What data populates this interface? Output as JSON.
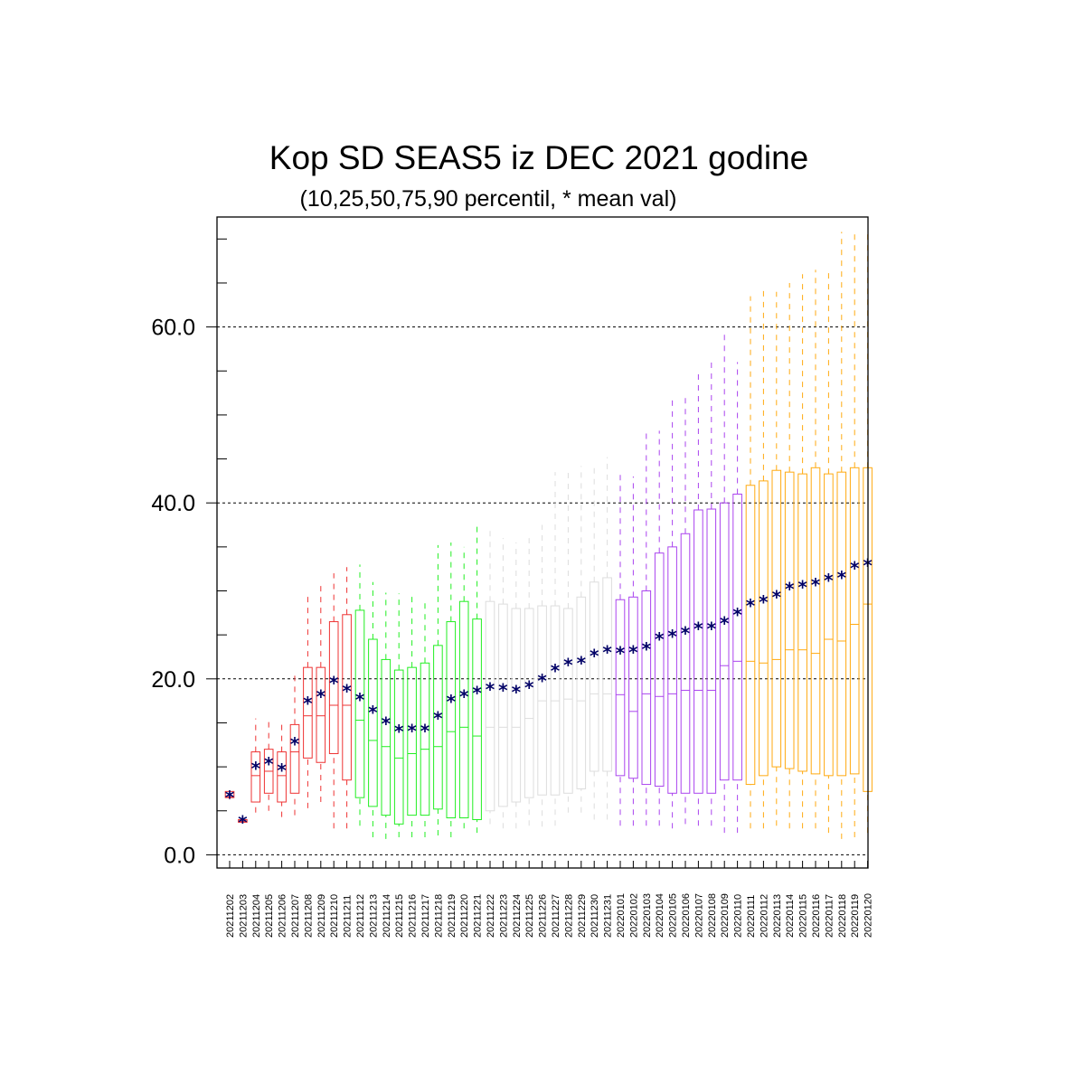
{
  "chart_data": {
    "type": "box",
    "title": "Kop SD SEAS5 iz DEC 2021 godine",
    "subtitle": "(10,25,50,75,90 percentil, * mean val)",
    "xlabel": "",
    "ylabel": "",
    "ylim": [
      -1.5,
      72.5
    ],
    "yticks": [
      0,
      20,
      40,
      60
    ],
    "ytick_labels": [
      "0.0",
      "20.0",
      "40.0",
      "60.0"
    ],
    "grid_y": [
      20,
      40,
      60
    ],
    "mean_marker": "*",
    "mean_color": "#000066",
    "categories": [
      "20211202",
      "20211203",
      "20211204",
      "20211205",
      "20211206",
      "20211207",
      "20211208",
      "20211209",
      "20211210",
      "20211211",
      "20211212",
      "20211213",
      "20211214",
      "20211215",
      "20211216",
      "20211217",
      "20211218",
      "20211219",
      "20211220",
      "20211221",
      "20211222",
      "20211223",
      "20211224",
      "20211225",
      "20211226",
      "20211227",
      "20211228",
      "20211229",
      "20211230",
      "20211231",
      "20220101",
      "20220102",
      "20220103",
      "20220104",
      "20220105",
      "20220106",
      "20220107",
      "20220108",
      "20220109",
      "20220110",
      "20220111",
      "20220112",
      "20220113",
      "20220114",
      "20220115",
      "20220116",
      "20220117",
      "20220118",
      "20220119",
      "20220120"
    ],
    "color_groups": [
      {
        "color": "#ee3333",
        "count": 10
      },
      {
        "color": "#22ee22",
        "count": 10
      },
      {
        "color": "#dddddd",
        "count": 10
      },
      {
        "color": "#aa44ee",
        "count": 10
      },
      {
        "color": "#ffaa11",
        "count": 10
      }
    ],
    "p10": [
      6.3,
      3.6,
      4.8,
      5.0,
      4.3,
      4.5,
      5.3,
      6.0,
      3.0,
      3.0,
      3.3,
      2.0,
      1.8,
      2.0,
      2.0,
      2.0,
      2.2,
      2.0,
      3.0,
      2.5,
      3.5,
      3.0,
      3.0,
      3.3,
      3.2,
      3.3,
      4.8,
      4.8,
      4.0,
      4.0,
      3.3,
      3.3,
      3.3,
      3.3,
      3.0,
      3.5,
      3.3,
      3.3,
      2.5,
      2.5,
      3.0,
      3.0,
      3.3,
      3.0,
      3.0,
      3.0,
      2.5,
      1.8,
      2.0,
      2.5
    ],
    "q1": [
      6.5,
      3.7,
      6.0,
      7.0,
      6.0,
      7.0,
      11.0,
      10.5,
      11.5,
      8.5,
      6.5,
      5.5,
      4.5,
      3.5,
      4.5,
      4.5,
      5.2,
      4.2,
      4.2,
      4.0,
      5.0,
      5.5,
      6.0,
      6.5,
      6.8,
      6.8,
      7.0,
      7.5,
      9.5,
      9.5,
      9.0,
      8.7,
      8.0,
      7.8,
      7.0,
      7.0,
      7.0,
      7.0,
      8.5,
      8.5,
      8.0,
      9.0,
      10.0,
      9.8,
      9.5,
      9.2,
      9.0,
      9.0,
      9.2,
      7.2
    ],
    "median": [
      6.6,
      3.8,
      9.0,
      9.5,
      9.0,
      11.7,
      15.8,
      15.8,
      17.0,
      17.0,
      15.3,
      13.0,
      12.3,
      11.0,
      11.5,
      12.0,
      12.3,
      14.0,
      14.5,
      13.5,
      14.5,
      14.5,
      14.5,
      15.5,
      17.5,
      17.5,
      17.7,
      17.5,
      18.3,
      18.3,
      18.2,
      16.3,
      18.3,
      18.0,
      18.3,
      18.7,
      18.7,
      18.7,
      21.5,
      22.0,
      22.0,
      21.8,
      22.2,
      23.3,
      23.3,
      22.9,
      24.5,
      24.3,
      26.2,
      28.5
    ],
    "q3": [
      7.2,
      4.0,
      11.7,
      12.0,
      11.7,
      14.8,
      21.3,
      21.3,
      26.5,
      27.3,
      27.8,
      24.5,
      22.2,
      21.0,
      21.3,
      21.8,
      23.8,
      26.5,
      28.8,
      26.8,
      28.8,
      28.5,
      28.0,
      28.0,
      28.3,
      28.3,
      28.0,
      29.3,
      31.0,
      31.5,
      29.0,
      29.3,
      30.0,
      34.3,
      35.0,
      36.5,
      39.2,
      39.3,
      40.0,
      41.0,
      42.0,
      42.5,
      43.7,
      43.5,
      43.3,
      44.0,
      43.3,
      43.5,
      44.0,
      44.0
    ],
    "p90": [
      7.3,
      4.1,
      15.5,
      15.5,
      15.3,
      20.7,
      29.8,
      31.0,
      32.0,
      32.7,
      33.0,
      31.0,
      29.8,
      29.7,
      29.7,
      29.0,
      35.2,
      35.5,
      35.0,
      37.3,
      37.0,
      36.0,
      35.5,
      36.0,
      37.5,
      43.5,
      43.5,
      44.2,
      44.5,
      45.2,
      43.5,
      43.0,
      47.9,
      48.2,
      51.8,
      52.0,
      55.2,
      56.0,
      59.3,
      56.0,
      63.5,
      64.2,
      64.0,
      65.0,
      66.0,
      66.5,
      66.7,
      70.8,
      70.8,
      70.8
    ],
    "mean": [
      6.7,
      3.9,
      10.0,
      10.5,
      9.8,
      12.8,
      17.4,
      18.2,
      19.7,
      18.8,
      17.8,
      16.4,
      15.1,
      14.2,
      14.3,
      14.3,
      15.7,
      17.6,
      18.2,
      18.6,
      19.0,
      18.9,
      18.7,
      19.2,
      20.0,
      21.1,
      21.8,
      22.0,
      22.8,
      23.2,
      23.1,
      23.2,
      23.6,
      24.7,
      25.0,
      25.4,
      25.9,
      25.9,
      26.5,
      27.5,
      28.5,
      28.9,
      29.5,
      30.4,
      30.6,
      30.9,
      31.4,
      31.7,
      32.8,
      33.1
    ]
  }
}
